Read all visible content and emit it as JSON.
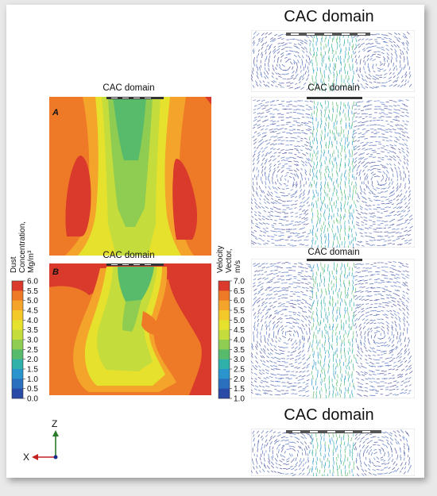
{
  "figure": {
    "labels": {
      "cac_top_right": "CAC domain",
      "cac_a": "CAC domain",
      "cac_b": "CAC domain",
      "cac_right_2": "CAC domain",
      "cac_right_3": "CAC domain",
      "cac_bottom_right": "CAC domain"
    },
    "panel_a_letter": "A",
    "panel_b_letter": "B",
    "axes": {
      "z_label": "Z",
      "x_label": "X"
    }
  },
  "colorbars": {
    "dust": {
      "title_lines": [
        "Dust",
        "Concentration,",
        "Mg/m³"
      ],
      "ticks": [
        "6.0",
        "5.5",
        "5.0",
        "4.5",
        "4.0",
        "3.5",
        "3.0",
        "2.5",
        "2.0",
        "1.5",
        "1.0",
        "0.5",
        "0.0"
      ],
      "colors": [
        "#d93a2b",
        "#ee7a28",
        "#f4a42a",
        "#f3c92a",
        "#e6e12d",
        "#c4dc3c",
        "#8fcc52",
        "#58bb6c",
        "#2fb0a8",
        "#2a95cc",
        "#2b6fbf",
        "#2a4aa8"
      ]
    },
    "velocity": {
      "title_lines": [
        "Velocity",
        "Vector,",
        "m/s"
      ],
      "ticks": [
        "7.0",
        "6.5",
        "6.0",
        "5.5",
        "5.0",
        "4.5",
        "4.0",
        "3.5",
        "3.0",
        "2.5",
        "2.0",
        "1.5",
        "1.0"
      ],
      "colors": [
        "#d93a2b",
        "#ee7a28",
        "#f4a42a",
        "#f3c92a",
        "#e6e12d",
        "#c4dc3c",
        "#8fcc52",
        "#58bb6c",
        "#2fb0a8",
        "#2a95cc",
        "#2b6fbf",
        "#2a4aa8"
      ]
    }
  }
}
